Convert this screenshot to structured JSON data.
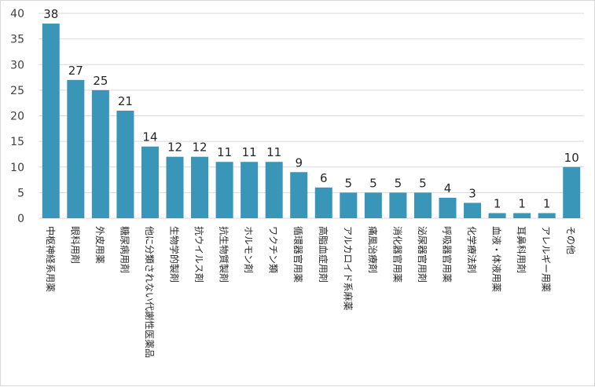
{
  "chart_data": {
    "type": "bar",
    "title": "",
    "xlabel": "",
    "ylabel": "",
    "ylim": [
      0,
      40
    ],
    "yticks": [
      0,
      5,
      10,
      15,
      20,
      25,
      30,
      35,
      40
    ],
    "grid": true,
    "legend": "none",
    "bar_color": "#3a96b8",
    "categories": [
      "中枢神経系用薬",
      "眼科用剤",
      "外皮用薬",
      "糖尿病用剤",
      "他に分類されない代謝性医薬品",
      "生物学的製剤",
      "抗ウイルス剤",
      "抗生物質製剤",
      "ホルモン剤",
      "ワクチン類",
      "循環器官用薬",
      "高脂血症用剤",
      "アルカロイド系麻薬",
      "痛風治療剤",
      "消化器官用薬",
      "泌尿器官用剤",
      "呼吸器官用薬",
      "化学療法剤",
      "血液・体液用薬",
      "耳鼻科用剤",
      "アレルギー用薬",
      "その他"
    ],
    "values": [
      38,
      27,
      25,
      21,
      14,
      12,
      12,
      11,
      11,
      11,
      9,
      6,
      5,
      5,
      5,
      5,
      4,
      3,
      1,
      1,
      1,
      10
    ]
  }
}
